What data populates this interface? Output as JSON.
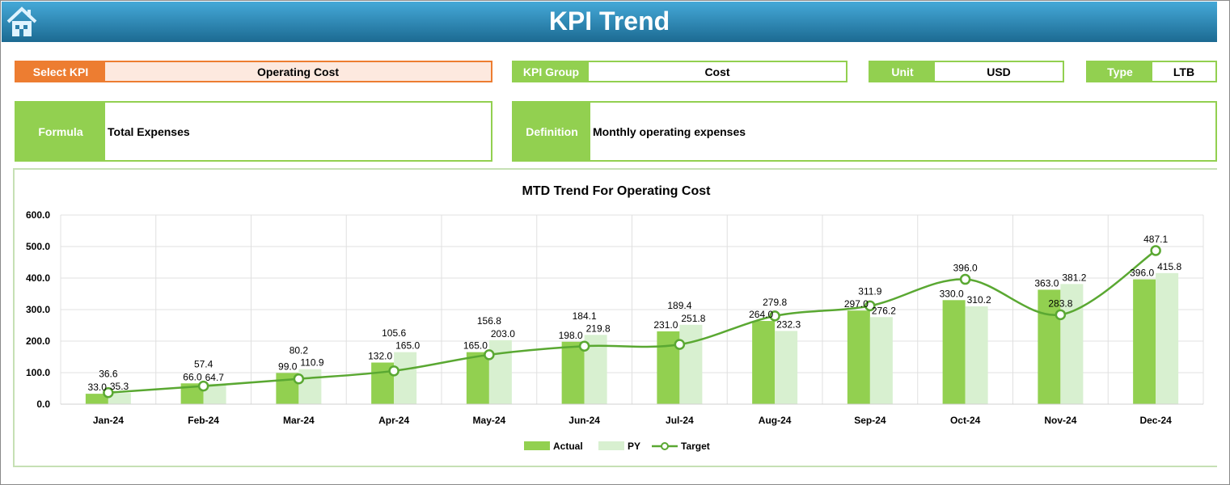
{
  "header": {
    "title": "KPI Trend",
    "home_icon": "home-icon"
  },
  "fields": {
    "select_kpi": {
      "label": "Select KPI",
      "value": "Operating Cost"
    },
    "kpi_group": {
      "label": "KPI Group",
      "value": "Cost"
    },
    "unit": {
      "label": "Unit",
      "value": "USD"
    },
    "type": {
      "label": "Type",
      "value": "LTB"
    },
    "formula": {
      "label": "Formula",
      "value": "Total Expenses"
    },
    "definition": {
      "label": "Definition",
      "value": "Monthly operating expenses"
    }
  },
  "colors": {
    "actual": "#92d050",
    "py": "#d8f0d0",
    "target": "#5aa832",
    "accent_orange": "#ed7d31",
    "header_blue": "#1c6a92"
  },
  "chart_data": {
    "type": "bar",
    "title": "MTD Trend For Operating Cost",
    "categories": [
      "Jan-24",
      "Feb-24",
      "Mar-24",
      "Apr-24",
      "May-24",
      "Jun-24",
      "Jul-24",
      "Aug-24",
      "Sep-24",
      "Oct-24",
      "Nov-24",
      "Dec-24"
    ],
    "series": [
      {
        "name": "Actual",
        "type": "bar",
        "values": [
          33.0,
          66.0,
          99.0,
          132.0,
          165.0,
          198.0,
          231.0,
          264.0,
          297.0,
          330.0,
          363.0,
          396.0
        ]
      },
      {
        "name": "PY",
        "type": "bar",
        "values": [
          35.3,
          64.7,
          110.9,
          165.0,
          203.0,
          219.8,
          251.8,
          232.3,
          276.2,
          310.2,
          381.2,
          415.8
        ]
      },
      {
        "name": "Target",
        "type": "line",
        "values": [
          36.6,
          57.4,
          80.2,
          105.6,
          156.8,
          184.1,
          189.4,
          279.8,
          311.9,
          396.0,
          283.8,
          487.1
        ]
      }
    ],
    "ylim": [
      0,
      600
    ],
    "yticks": [
      "0.0",
      "100.0",
      "200.0",
      "300.0",
      "400.0",
      "500.0",
      "600.0"
    ],
    "grid": true,
    "legend": "bottom"
  }
}
